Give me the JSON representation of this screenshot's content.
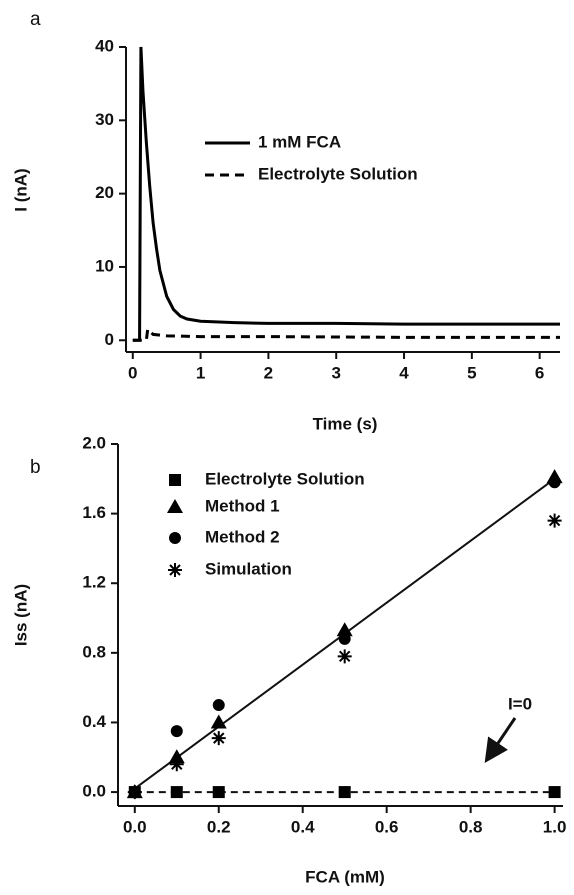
{
  "chart_data": [
    {
      "type": "line",
      "panel": "a",
      "xlabel": "Time (s)",
      "ylabel": "I (nA)",
      "xlim": [
        -0.1,
        6.3
      ],
      "ylim": [
        -1.6,
        40
      ],
      "xticks": [
        0,
        1,
        2,
        3,
        4,
        5,
        6
      ],
      "yticks": [
        0,
        10,
        20,
        30,
        40
      ],
      "series": [
        {
          "name": "1 mM FCA",
          "color": "#000000",
          "dash": false,
          "x": [
            0,
            0.1,
            0.12,
            0.15,
            0.2,
            0.25,
            0.3,
            0.35,
            0.4,
            0.5,
            0.6,
            0.7,
            0.8,
            1.0,
            1.5,
            2,
            3,
            4,
            5,
            6,
            6.3
          ],
          "values": [
            0,
            0,
            40,
            34,
            27,
            21,
            16,
            12.5,
            9.5,
            6,
            4.2,
            3.3,
            2.9,
            2.6,
            2.4,
            2.3,
            2.3,
            2.2,
            2.2,
            2.2,
            2.2
          ]
        },
        {
          "name": "Electrolyte Solution",
          "color": "#000000",
          "dash": true,
          "x": [
            0,
            0.2,
            0.22,
            0.3,
            0.5,
            1,
            2,
            4,
            6.3
          ],
          "values": [
            0,
            0,
            1.5,
            0.8,
            0.6,
            0.5,
            0.5,
            0.4,
            0.4
          ]
        }
      ]
    },
    {
      "type": "scatter",
      "panel": "b",
      "xlabel": "FCA (mM)",
      "ylabel": "Iss (nA)",
      "xlim": [
        -0.04,
        1.02
      ],
      "ylim": [
        -0.08,
        2.0
      ],
      "xticks": [
        {
          "value": 0,
          "label": "0.0"
        },
        0.2,
        0.4,
        0.6,
        0.8,
        {
          "value": 1,
          "label": "1.0"
        }
      ],
      "yticks": [
        {
          "value": 0,
          "label": "0.0"
        },
        0.4,
        0.8,
        1.2,
        1.6,
        {
          "value": 2,
          "label": "2.0"
        }
      ],
      "x": [
        0,
        0.1,
        0.2,
        0.5,
        1.0
      ],
      "series": [
        {
          "name": "Electrolyte Solution",
          "marker": "square",
          "color": "#000000",
          "values": [
            0,
            0,
            0,
            0,
            0
          ]
        },
        {
          "name": "Method 1",
          "marker": "triangle",
          "color": "#000000",
          "values": [
            0,
            0.2,
            0.4,
            0.93,
            1.81
          ]
        },
        {
          "name": "Method 2",
          "marker": "circle",
          "color": "#000000",
          "values": [
            0,
            0.35,
            0.5,
            0.88,
            1.78
          ]
        },
        {
          "name": "Simulation",
          "marker": "asterisk",
          "color": "#000000",
          "values": [
            0,
            0.16,
            0.31,
            0.78,
            1.56
          ]
        }
      ],
      "lines": [
        {
          "x": [
            0,
            1
          ],
          "y": [
            0.02,
            1.8
          ],
          "dash": false
        },
        {
          "x": [
            0,
            1
          ],
          "y": [
            0,
            0
          ],
          "dash": true
        }
      ],
      "annotation": "I=0"
    }
  ]
}
